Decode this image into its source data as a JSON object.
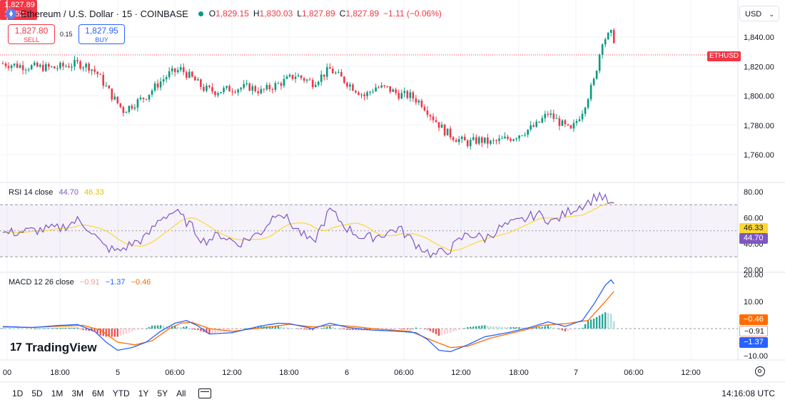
{
  "header": {
    "symbol_title": "Ethereum / U.S. Dollar · 15 · COINBASE",
    "o_label": "O",
    "open": "1,829.15",
    "h_label": "H",
    "high": "1,830.03",
    "l_label": "L",
    "low": "1,827.89",
    "c_label": "C",
    "close": "1,827.89",
    "change": "−1.11 (−0.06%)"
  },
  "trade": {
    "sell_price": "1,827.80",
    "sell_label": "SELL",
    "spread": "0.15",
    "buy_price": "1,827.95",
    "buy_label": "BUY"
  },
  "currency": {
    "label": "USD",
    "chevron": "⌄"
  },
  "price_axis": {
    "ticks": [
      "1,840.00",
      "1,820.00",
      "1,800.00",
      "1,780.00",
      "1,760.00"
    ],
    "tick_values": [
      1840,
      1820,
      1800,
      1780,
      1760
    ],
    "current_price": "1,827.89",
    "countdown": "13:52",
    "symbol_tag": "ETHUSD"
  },
  "rsi": {
    "name": "RSI",
    "params": "14 close",
    "value": "44.70",
    "ma_value": "46.33",
    "ticks": [
      "80.00",
      "60.00",
      "40.00",
      "20.00"
    ],
    "tick_values": [
      80,
      60,
      40,
      20
    ],
    "band_upper": 70,
    "band_mid": 50,
    "band_lower": 30
  },
  "macd": {
    "name": "MACD",
    "params": "12 26 close",
    "histogram_value": "−0.91",
    "macd_value": "−1.37",
    "signal_value": "−0.46",
    "ticks": [
      "20.00",
      "10.00",
      "0.00",
      "−10.00"
    ],
    "tick_values": [
      20,
      10,
      0,
      -10
    ]
  },
  "time_axis": {
    "labels": [
      "00",
      "18:00",
      "5",
      "06:00",
      "12:00",
      "18:00",
      "6",
      "06:00",
      "12:00",
      "18:00",
      "7",
      "06:00",
      "12:00"
    ]
  },
  "timeframes": [
    "1D",
    "5D",
    "1M",
    "3M",
    "6M",
    "YTD",
    "1Y",
    "5Y",
    "All"
  ],
  "clock": "14:16:08 UTC",
  "branding": {
    "logo_mark": "17",
    "logo_text": "TradingView"
  },
  "colors": {
    "up": "#089981",
    "down": "#f23645",
    "rsi_line": "#7e57c2",
    "rsi_ma": "#fdd835",
    "macd_line": "#2962ff",
    "signal_line": "#ff6d00",
    "hist_up": "#26a69a",
    "hist_down": "#ef5350"
  },
  "chart_data": {
    "type": "candlestick",
    "series_count": 214,
    "y_range": [
      1750,
      1855
    ],
    "price_anchors": [
      [
        0,
        1822
      ],
      [
        8,
        1820
      ],
      [
        18,
        1819
      ],
      [
        26,
        1822
      ],
      [
        30,
        1820
      ],
      [
        33,
        1815
      ],
      [
        38,
        1800
      ],
      [
        42,
        1790
      ],
      [
        46,
        1795
      ],
      [
        50,
        1800
      ],
      [
        54,
        1808
      ],
      [
        58,
        1815
      ],
      [
        62,
        1818
      ],
      [
        66,
        1812
      ],
      [
        70,
        1805
      ],
      [
        74,
        1803
      ],
      [
        80,
        1805
      ],
      [
        86,
        1806
      ],
      [
        90,
        1803
      ],
      [
        96,
        1808
      ],
      [
        102,
        1814
      ],
      [
        108,
        1809
      ],
      [
        110,
        1812
      ],
      [
        114,
        1818
      ],
      [
        118,
        1812
      ],
      [
        122,
        1806
      ],
      [
        126,
        1800
      ],
      [
        130,
        1806
      ],
      [
        134,
        1805
      ],
      [
        138,
        1801
      ],
      [
        142,
        1800
      ],
      [
        146,
        1795
      ],
      [
        150,
        1785
      ],
      [
        154,
        1776
      ],
      [
        158,
        1771
      ],
      [
        162,
        1768
      ],
      [
        166,
        1770
      ],
      [
        170,
        1768
      ],
      [
        174,
        1770
      ],
      [
        178,
        1772
      ],
      [
        182,
        1776
      ],
      [
        186,
        1780
      ],
      [
        190,
        1788
      ],
      [
        194,
        1782
      ],
      [
        198,
        1776
      ],
      [
        202,
        1790
      ],
      [
        206,
        1810
      ],
      [
        209,
        1838
      ],
      [
        212,
        1842
      ],
      [
        214,
        1835
      ],
      [
        218,
        1826
      ],
      [
        222,
        1830
      ],
      [
        228,
        1835
      ],
      [
        232,
        1838
      ],
      [
        236,
        1842
      ],
      [
        240,
        1838
      ],
      [
        244,
        1834
      ],
      [
        246,
        1829
      ]
    ],
    "rsi_anchors": [
      [
        0,
        48
      ],
      [
        10,
        50
      ],
      [
        20,
        52
      ],
      [
        26,
        58
      ],
      [
        30,
        52
      ],
      [
        35,
        38
      ],
      [
        40,
        34
      ],
      [
        45,
        40
      ],
      [
        50,
        45
      ],
      [
        55,
        60
      ],
      [
        60,
        65
      ],
      [
        65,
        55
      ],
      [
        70,
        42
      ],
      [
        76,
        47
      ],
      [
        82,
        40
      ],
      [
        90,
        49
      ],
      [
        96,
        66
      ],
      [
        102,
        52
      ],
      [
        108,
        40
      ],
      [
        114,
        66
      ],
      [
        120,
        52
      ],
      [
        126,
        44
      ],
      [
        132,
        47
      ],
      [
        138,
        52
      ],
      [
        144,
        40
      ],
      [
        150,
        31
      ],
      [
        156,
        36
      ],
      [
        162,
        48
      ],
      [
        168,
        44
      ],
      [
        174,
        53
      ],
      [
        180,
        57
      ],
      [
        186,
        63
      ],
      [
        192,
        57
      ],
      [
        198,
        66
      ],
      [
        204,
        72
      ],
      [
        208,
        78
      ],
      [
        212,
        70
      ],
      [
        216,
        62
      ],
      [
        222,
        60
      ],
      [
        228,
        63
      ],
      [
        234,
        66
      ],
      [
        238,
        60
      ],
      [
        242,
        46
      ],
      [
        246,
        44
      ]
    ],
    "macd_anchors": [
      [
        0,
        0.8
      ],
      [
        10,
        0.4
      ],
      [
        20,
        1.2
      ],
      [
        26,
        1.5
      ],
      [
        32,
        -1
      ],
      [
        36,
        -5
      ],
      [
        40,
        -8
      ],
      [
        45,
        -7
      ],
      [
        50,
        -5
      ],
      [
        55,
        -1
      ],
      [
        60,
        2
      ],
      [
        64,
        3
      ],
      [
        68,
        1
      ],
      [
        72,
        -2
      ],
      [
        80,
        -1.5
      ],
      [
        90,
        1
      ],
      [
        96,
        2
      ],
      [
        100,
        1.8
      ],
      [
        108,
        0
      ],
      [
        114,
        2
      ],
      [
        120,
        0.5
      ],
      [
        128,
        -0.5
      ],
      [
        138,
        -1
      ],
      [
        144,
        -1.5
      ],
      [
        148,
        -4
      ],
      [
        152,
        -8
      ],
      [
        156,
        -8.5
      ],
      [
        162,
        -6
      ],
      [
        168,
        -3
      ],
      [
        176,
        -1.5
      ],
      [
        184,
        0.5
      ],
      [
        190,
        2.5
      ],
      [
        196,
        0.8
      ],
      [
        202,
        3
      ],
      [
        206,
        9
      ],
      [
        210,
        16
      ],
      [
        212,
        18
      ],
      [
        216,
        12
      ],
      [
        222,
        7
      ],
      [
        228,
        4
      ],
      [
        234,
        4
      ],
      [
        238,
        3
      ],
      [
        242,
        -0.5
      ],
      [
        246,
        -1.4
      ]
    ],
    "signal_anchors": [
      [
        0,
        0.6
      ],
      [
        10,
        0.4
      ],
      [
        20,
        0.9
      ],
      [
        28,
        1.2
      ],
      [
        34,
        -0.5
      ],
      [
        40,
        -5
      ],
      [
        46,
        -6
      ],
      [
        52,
        -4.5
      ],
      [
        58,
        0
      ],
      [
        62,
        2
      ],
      [
        66,
        2.3
      ],
      [
        72,
        0
      ],
      [
        80,
        -1
      ],
      [
        92,
        0.5
      ],
      [
        100,
        1.6
      ],
      [
        108,
        0.6
      ],
      [
        116,
        1.3
      ],
      [
        122,
        0.8
      ],
      [
        132,
        -0.3
      ],
      [
        142,
        -1
      ],
      [
        150,
        -4.5
      ],
      [
        156,
        -7
      ],
      [
        162,
        -6.5
      ],
      [
        170,
        -3.5
      ],
      [
        180,
        -1
      ],
      [
        188,
        1.2
      ],
      [
        196,
        1.8
      ],
      [
        204,
        3
      ],
      [
        210,
        10
      ],
      [
        214,
        15
      ],
      [
        220,
        11
      ],
      [
        228,
        6
      ],
      [
        236,
        4.5
      ],
      [
        242,
        2
      ],
      [
        246,
        -0.5
      ]
    ]
  }
}
